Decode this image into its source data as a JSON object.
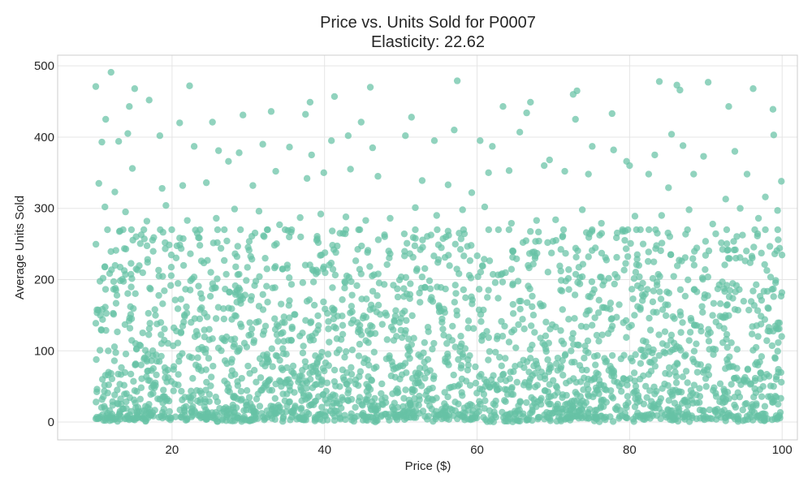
{
  "chart_data": {
    "type": "scatter",
    "title": "Price vs. Units Sold for P0007",
    "subtitle": "Elasticity: 22.62",
    "xlabel": "Price ($)",
    "ylabel": "Average Units Sold",
    "xlim": [
      5,
      102
    ],
    "ylim": [
      -25,
      515
    ],
    "xticks": [
      "20",
      "40",
      "60",
      "80",
      "100"
    ],
    "yticks": [
      "0",
      "100",
      "200",
      "300",
      "400",
      "500"
    ],
    "grid": true,
    "legend": "none",
    "marker_color": "#66c2a5",
    "grid_color": "#e5e5e5",
    "axes_edge_color": "#cccccc",
    "text_color": "#262626",
    "points": [
      [
        10,
        471
      ],
      [
        12,
        491
      ],
      [
        11.3,
        425
      ],
      [
        15.1,
        468
      ],
      [
        14.4,
        443
      ],
      [
        17.0,
        452
      ],
      [
        22.3,
        472
      ],
      [
        21.0,
        420
      ],
      [
        25.3,
        421
      ],
      [
        29.3,
        431
      ],
      [
        33.0,
        436
      ],
      [
        37.5,
        432
      ],
      [
        38.1,
        449
      ],
      [
        41.3,
        457
      ],
      [
        44.8,
        421
      ],
      [
        46.0,
        470
      ],
      [
        51.4,
        428
      ],
      [
        57.4,
        479
      ],
      [
        63.4,
        443
      ],
      [
        66.5,
        434
      ],
      [
        67.0,
        449
      ],
      [
        72.6,
        460
      ],
      [
        73.1,
        465
      ],
      [
        77.7,
        433
      ],
      [
        83.9,
        478
      ],
      [
        86.2,
        473
      ],
      [
        86.6,
        466
      ],
      [
        90.3,
        477
      ],
      [
        93.0,
        443
      ],
      [
        96.2,
        468
      ],
      [
        98.8,
        439
      ],
      [
        10.8,
        393
      ],
      [
        13.0,
        394
      ],
      [
        14.2,
        405
      ],
      [
        18.4,
        402
      ],
      [
        22.9,
        387
      ],
      [
        26.1,
        381
      ],
      [
        28.8,
        378
      ],
      [
        31.9,
        390
      ],
      [
        35.4,
        386
      ],
      [
        38.3,
        375
      ],
      [
        40.9,
        395
      ],
      [
        43.1,
        402
      ],
      [
        46.3,
        385
      ],
      [
        50.6,
        402
      ],
      [
        54.4,
        395
      ],
      [
        57.0,
        410
      ],
      [
        60.4,
        395
      ],
      [
        62.0,
        387
      ],
      [
        65.6,
        407
      ],
      [
        69.5,
        368
      ],
      [
        72.9,
        425
      ],
      [
        75.1,
        387
      ],
      [
        77.9,
        382
      ],
      [
        80.0,
        360
      ],
      [
        83.3,
        375
      ],
      [
        85.5,
        404
      ],
      [
        87.0,
        388
      ],
      [
        89.7,
        373
      ],
      [
        93.8,
        380
      ],
      [
        98.9,
        403
      ],
      [
        10.4,
        335
      ],
      [
        12.5,
        323
      ],
      [
        14.8,
        356
      ],
      [
        18.7,
        328
      ],
      [
        21.4,
        332
      ],
      [
        24.5,
        336
      ],
      [
        27.4,
        366
      ],
      [
        30.6,
        332
      ],
      [
        33.6,
        352
      ],
      [
        37.7,
        342
      ],
      [
        39.9,
        350
      ],
      [
        43.4,
        355
      ],
      [
        47.0,
        345
      ],
      [
        52.8,
        339
      ],
      [
        56.2,
        333
      ],
      [
        59.3,
        322
      ],
      [
        61.5,
        350
      ],
      [
        64.2,
        353
      ],
      [
        68.8,
        360
      ],
      [
        71.5,
        352
      ],
      [
        74.6,
        348
      ],
      [
        79.6,
        366
      ],
      [
        82.5,
        348
      ],
      [
        85.1,
        329
      ],
      [
        88.4,
        348
      ],
      [
        92.6,
        313
      ],
      [
        95.4,
        348
      ],
      [
        97.8,
        316
      ],
      [
        99.9,
        338
      ],
      [
        11.2,
        302
      ],
      [
        13.9,
        295
      ],
      [
        16.7,
        282
      ],
      [
        19.2,
        304
      ],
      [
        22.0,
        283
      ],
      [
        25.8,
        286
      ],
      [
        28.2,
        299
      ],
      [
        31.4,
        296
      ],
      [
        34.1,
        277
      ],
      [
        36.8,
        287
      ],
      [
        39.5,
        292
      ],
      [
        42.8,
        288
      ],
      [
        45.4,
        283
      ],
      [
        48.6,
        286
      ],
      [
        51.9,
        301
      ],
      [
        54.7,
        290
      ],
      [
        58.1,
        298
      ],
      [
        61.0,
        302
      ],
      [
        64.5,
        279
      ],
      [
        67.8,
        283
      ],
      [
        70.3,
        284
      ],
      [
        73.8,
        298
      ],
      [
        76.3,
        279
      ],
      [
        80.7,
        289
      ],
      [
        84.2,
        290
      ],
      [
        87.8,
        298
      ],
      [
        90.9,
        278
      ],
      [
        94.5,
        300
      ],
      [
        96.9,
        286
      ],
      [
        99.4,
        297
      ]
    ]
  }
}
